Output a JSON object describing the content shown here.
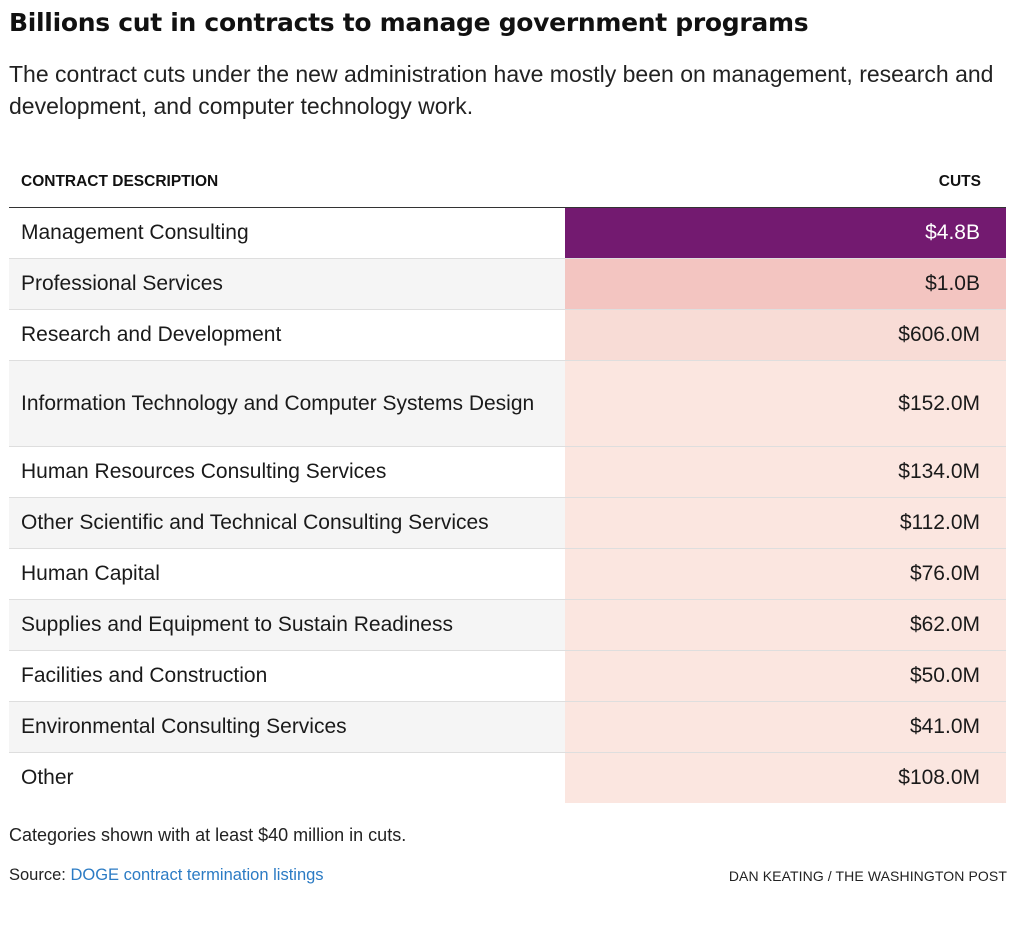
{
  "title": "Billions cut in contracts to manage government programs",
  "subtitle": "The contract cuts under the new administration have mostly been on management, research and development, and computer technology work.",
  "chart_data": {
    "type": "table",
    "columns": [
      "CONTRACT DESCRIPTION",
      "CUTS"
    ],
    "rows": [
      {
        "label": "Management Consulting",
        "value_text": "$4.8B",
        "value": 4800,
        "bg": "#731a70",
        "fg": "#ffffff"
      },
      {
        "label": "Professional Services",
        "value_text": "$1.0B",
        "value": 1000,
        "bg": "#f3c5c1",
        "fg": "#1a1a1a"
      },
      {
        "label": "Research and Development",
        "value_text": "$606.0M",
        "value": 606,
        "bg": "#f8dcd6",
        "fg": "#1a1a1a"
      },
      {
        "label": "Information Technology and Computer Systems Design",
        "value_text": "$152.0M",
        "value": 152,
        "bg": "#fbe6e0",
        "fg": "#1a1a1a"
      },
      {
        "label": "Human Resources Consulting Services",
        "value_text": "$134.0M",
        "value": 134,
        "bg": "#fbe6e0",
        "fg": "#1a1a1a"
      },
      {
        "label": "Other Scientific and Technical Consulting Services",
        "value_text": "$112.0M",
        "value": 112,
        "bg": "#fbe6e0",
        "fg": "#1a1a1a"
      },
      {
        "label": "Human Capital",
        "value_text": "$76.0M",
        "value": 76,
        "bg": "#fbe6e0",
        "fg": "#1a1a1a"
      },
      {
        "label": "Supplies and Equipment to Sustain Readiness",
        "value_text": "$62.0M",
        "value": 62,
        "bg": "#fbe6e0",
        "fg": "#1a1a1a"
      },
      {
        "label": "Facilities and Construction",
        "value_text": "$50.0M",
        "value": 50,
        "bg": "#fbe6e0",
        "fg": "#1a1a1a"
      },
      {
        "label": "Environmental Consulting Services",
        "value_text": "$41.0M",
        "value": 41,
        "bg": "#fbe6e0",
        "fg": "#1a1a1a"
      },
      {
        "label": "Other",
        "value_text": "$108.0M",
        "value": 108,
        "bg": "#fbe6e0",
        "fg": "#1a1a1a"
      }
    ],
    "value_unit": "$M"
  },
  "footnote": "Categories shown with at least $40 million in cuts.",
  "source_label": "Source: ",
  "source_link": "DOGE contract termination listings",
  "credit": "DAN KEATING / THE WASHINGTON POST",
  "colors": {
    "link": "#2b7bc4",
    "highlight": "#731a70"
  }
}
